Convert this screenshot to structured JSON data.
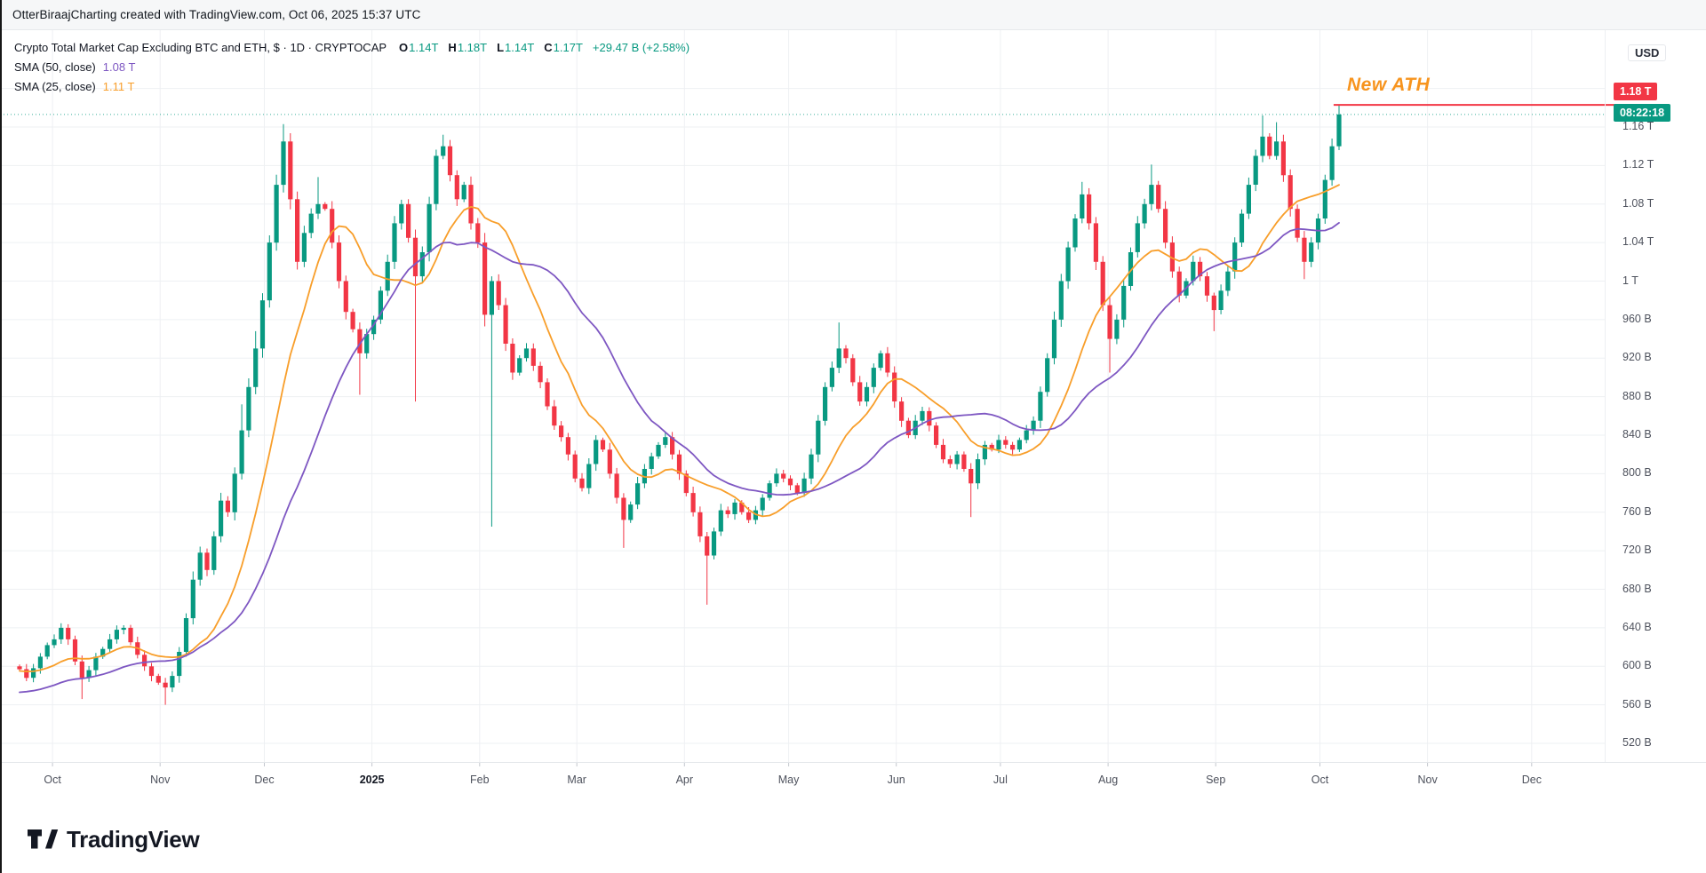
{
  "header": {
    "attribution": "OtterBiraajCharting created with TradingView.com, Oct 06, 2025 15:37 UTC"
  },
  "legend": {
    "title": "Crypto Total Market Cap Excluding BTC and ETH, $ · 1D · CRYPTOCAP",
    "ohlc": [
      {
        "label": "O",
        "value": "1.14T"
      },
      {
        "label": "H",
        "value": "1.18T"
      },
      {
        "label": "L",
        "value": "1.14T"
      },
      {
        "label": "C",
        "value": "1.17T"
      }
    ],
    "change": "+29.47 B (+2.58%)",
    "sma50": {
      "label": "SMA (50, close)",
      "value": "1.08 T"
    },
    "sma25": {
      "label": "SMA (25, close)",
      "value": "1.11 T"
    }
  },
  "annotation": {
    "text": "New ATH"
  },
  "axis": {
    "currency": "USD",
    "price_badge": {
      "value": "1.18 T"
    },
    "countdown_badge": {
      "value": "08:22:18"
    },
    "price_labels": [
      {
        "value": 1160,
        "text": "1.16 T"
      },
      {
        "value": 1120,
        "text": "1.12 T"
      },
      {
        "value": 1080,
        "text": "1.08 T"
      },
      {
        "value": 1040,
        "text": "1.04 T"
      },
      {
        "value": 1000,
        "text": "1 T"
      },
      {
        "value": 960,
        "text": "960 B"
      },
      {
        "value": 920,
        "text": "920 B"
      },
      {
        "value": 880,
        "text": "880 B"
      },
      {
        "value": 840,
        "text": "840 B"
      },
      {
        "value": 800,
        "text": "800 B"
      },
      {
        "value": 760,
        "text": "760 B"
      },
      {
        "value": 720,
        "text": "720 B"
      },
      {
        "value": 680,
        "text": "680 B"
      },
      {
        "value": 640,
        "text": "640 B"
      },
      {
        "value": 600,
        "text": "600 B"
      },
      {
        "value": 560,
        "text": "560 B"
      },
      {
        "value": 520,
        "text": "520 B"
      }
    ],
    "time_labels": [
      {
        "label": "Oct",
        "day": 10
      },
      {
        "label": "Nov",
        "day": 41
      },
      {
        "label": "Dec",
        "day": 71
      },
      {
        "label": "2025",
        "day": 102,
        "bold": true
      },
      {
        "label": "Feb",
        "day": 133
      },
      {
        "label": "Mar",
        "day": 161
      },
      {
        "label": "Apr",
        "day": 192
      },
      {
        "label": "May",
        "day": 222
      },
      {
        "label": "Jun",
        "day": 253
      },
      {
        "label": "Jul",
        "day": 283
      },
      {
        "label": "Aug",
        "day": 314
      },
      {
        "label": "Sep",
        "day": 345
      },
      {
        "label": "Oct",
        "day": 375
      },
      {
        "label": "Nov",
        "day": 406
      },
      {
        "label": "Dec",
        "day": 436
      }
    ]
  },
  "footer": {
    "logo_text": "TradingView"
  },
  "chart_data": {
    "type": "candlestick",
    "title": "Crypto Total Market Cap Excluding BTC and ETH, $ · 1D · CRYPTOCAP",
    "unit": "billions USD",
    "ylim": [
      520,
      1200
    ],
    "y_step": 40,
    "grid": true,
    "bar_interval_days": 2,
    "first_open_b": 600,
    "closes_b": [
      597,
      588,
      598,
      610,
      622,
      628,
      640,
      628,
      605,
      588,
      596,
      610,
      618,
      628,
      638,
      640,
      625,
      612,
      600,
      590,
      583,
      578,
      590,
      615,
      650,
      690,
      718,
      700,
      735,
      772,
      760,
      800,
      845,
      890,
      930,
      980,
      1040,
      1100,
      1145,
      1085,
      1020,
      1050,
      1070,
      1080,
      1075,
      1040,
      1000,
      968,
      950,
      925,
      945,
      960,
      990,
      1020,
      1060,
      1080,
      1045,
      1005,
      1030,
      1080,
      1130,
      1140,
      1110,
      1085,
      1100,
      1060,
      1040,
      965,
      1000,
      975,
      935,
      905,
      920,
      930,
      912,
      895,
      870,
      850,
      838,
      820,
      795,
      785,
      810,
      835,
      825,
      800,
      775,
      752,
      768,
      790,
      805,
      818,
      830,
      838,
      820,
      800,
      780,
      760,
      735,
      715,
      740,
      762,
      758,
      770,
      760,
      752,
      762,
      775,
      790,
      800,
      795,
      788,
      780,
      795,
      820,
      855,
      890,
      910,
      930,
      920,
      895,
      875,
      890,
      910,
      925,
      905,
      875,
      855,
      840,
      855,
      865,
      850,
      830,
      815,
      810,
      820,
      805,
      790,
      815,
      830,
      825,
      835,
      830,
      825,
      835,
      845,
      855,
      885,
      920,
      960,
      1000,
      1035,
      1065,
      1090,
      1060,
      1020,
      975,
      940,
      960,
      995,
      1030,
      1060,
      1080,
      1100,
      1075,
      1040,
      1010,
      985,
      1000,
      1020,
      1005,
      985,
      970,
      990,
      1010,
      1040,
      1070,
      1100,
      1130,
      1150,
      1130,
      1145,
      1110,
      1075,
      1045,
      1020,
      1040,
      1065,
      1105,
      1140,
      1173
    ],
    "wick_overrides": {
      "9": {
        "low": 566
      },
      "21": {
        "low": 560
      },
      "32": {
        "high": 872
      },
      "34": {
        "high": 948
      },
      "38": {
        "high": 1163
      },
      "43": {
        "high": 1108
      },
      "49": {
        "low": 882
      },
      "57": {
        "low": 875
      },
      "61": {
        "high": 1152
      },
      "68": {
        "low": 745
      },
      "87": {
        "low": 723
      },
      "99": {
        "low": 664
      },
      "118": {
        "high": 957
      },
      "137": {
        "low": 755
      },
      "153": {
        "high": 1103
      },
      "157": {
        "low": 905
      },
      "163": {
        "high": 1121
      },
      "172": {
        "low": 948
      },
      "179": {
        "high": 1172
      },
      "181": {
        "high": 1165
      },
      "185": {
        "low": 1002
      },
      "190": {
        "high": 1183,
        "low": 1136
      }
    },
    "sma": [
      {
        "name": "SMA (25, close)",
        "window_candles": 12,
        "seed_b": 595,
        "color": "#f89e2a",
        "last_value_b": 1110
      },
      {
        "name": "SMA (50, close)",
        "window_candles": 25,
        "seed_b": 572,
        "color": "#7e57c2",
        "last_value_b": 1080
      }
    ],
    "ath_line_b": 1183,
    "last_price_b": 1173,
    "colors": {
      "up": "#089981",
      "down": "#f23645",
      "ath_line": "#f23645",
      "grid": "#eef0f3"
    }
  }
}
